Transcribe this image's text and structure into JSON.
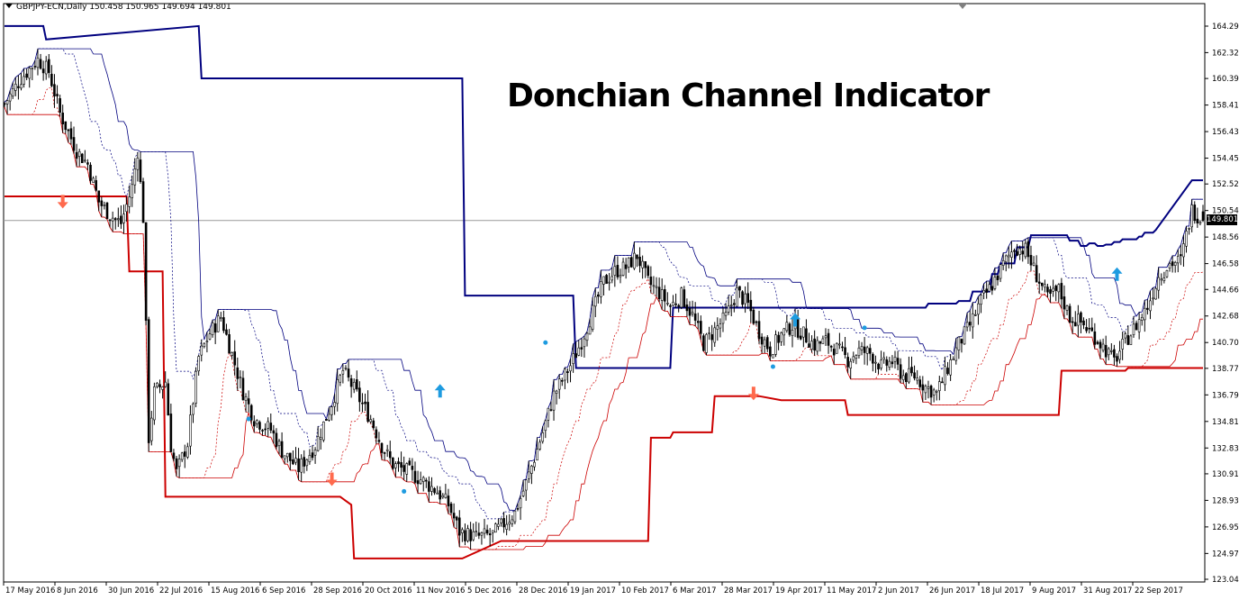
{
  "header": {
    "symbol_line": "GBPJPY-ECN,Daily  150.458 150.965 149.694 149.801"
  },
  "title": "Donchian Channel Indicator",
  "current_price_label": "149.801",
  "colors": {
    "upper_band": "#00007f",
    "lower_band": "#cc0000",
    "mid_band_upper": "#00007f",
    "mid_band_lower": "#cc0000",
    "candles": "#000000",
    "arrow_up": "#1e9be0",
    "arrow_down": "#ff6a4d",
    "signal_dot": "#1e9be0",
    "grid_line": "#999999"
  },
  "icons": {
    "buy_signal": "up-arrow-icon",
    "sell_signal": "down-arrow-icon",
    "signal_dot": "dot-icon"
  },
  "chart_data": {
    "type": "line",
    "ylim": [
      123.045,
      165.5
    ],
    "y_ticks": [
      "164.295",
      "162.320",
      "160.390",
      "158.410",
      "156.430",
      "154.450",
      "152.525",
      "150.545",
      "148.565",
      "146.585",
      "144.660",
      "142.680",
      "140.700",
      "138.775",
      "136.795",
      "134.815",
      "132.835",
      "130.910",
      "128.930",
      "126.950",
      "124.970",
      "123.045"
    ],
    "x_ticks": [
      "17 May 2016",
      "8 Jun 2016",
      "30 Jun 2016",
      "22 Jul 2016",
      "15 Aug 2016",
      "6 Sep 2016",
      "28 Sep 2016",
      "20 Oct 2016",
      "11 Nov 2016",
      "5 Dec 2016",
      "28 Dec 2016",
      "19 Jan 2017",
      "10 Feb 2017",
      "6 Mar 2017",
      "28 Mar 2017",
      "19 Apr 2017",
      "11 May 2017",
      "2 Jun 2017",
      "26 Jun 2017",
      "18 Jul 2017",
      "9 Aug 2017",
      "31 Aug 2017",
      "22 Sep 2017"
    ],
    "last_close": 149.801,
    "series": [
      {
        "values_x": [
          0,
          14,
          15,
          70,
          71,
          85,
          86,
          165,
          166,
          205,
          206,
          213,
          214,
          240,
          241,
          332,
          333,
          343,
          344,
          348,
          349,
          355,
          356,
          358,
          359,
          364,
          365,
          369,
          370,
          377,
          378,
          383,
          384,
          387,
          388,
          390,
          391,
          393,
          394,
          396,
          397,
          399,
          400,
          402,
          403,
          405,
          406,
          408,
          409,
          410,
          411,
          412,
          413,
          414,
          415,
          428,
          429,
          432
        ],
        "values_y": [
          164.3,
          164.3,
          163.3,
          164.3,
          160.4,
          160.4,
          160.4,
          160.4,
          144.2,
          144.2,
          138.8,
          138.8,
          138.8,
          138.8,
          143.3,
          143.3,
          143.6,
          143.6,
          143.8,
          143.8,
          144.5,
          144.5,
          145.8,
          145.8,
          146.6,
          146.6,
          147.8,
          147.8,
          148.7,
          148.7,
          148.7,
          148.7,
          148.3,
          148.3,
          147.9,
          147.9,
          148.1,
          148.1,
          147.9,
          147.9,
          148.0,
          148.0,
          148.2,
          148.2,
          148.4,
          148.4,
          148.4,
          148.4,
          148.6,
          148.6,
          148.9,
          148.9,
          148.9,
          148.9,
          149.1,
          152.8,
          152.8,
          152.8
        ]
      },
      {
        "values_x": [
          0,
          44,
          45,
          57,
          58,
          120,
          121,
          125,
          126,
          142,
          143,
          164,
          165,
          179,
          180,
          232,
          233,
          240,
          241,
          255,
          256,
          271,
          272,
          280,
          281,
          303,
          304,
          346,
          347,
          370,
          371,
          380,
          381,
          397,
          398,
          404,
          405,
          421,
          422,
          432
        ],
        "values_y": [
          151.6,
          151.6,
          146.0,
          146.0,
          129.2,
          129.2,
          129.2,
          128.6,
          124.6,
          124.6,
          124.6,
          124.6,
          124.6,
          125.9,
          125.9,
          125.9,
          133.6,
          133.6,
          134.0,
          134.0,
          136.7,
          136.7,
          136.7,
          136.4,
          136.4,
          136.4,
          135.3,
          135.3,
          135.3,
          135.3,
          135.3,
          135.3,
          138.6,
          138.6,
          138.6,
          138.6,
          138.8,
          138.8,
          138.8,
          138.8
        ]
      }
    ]
  }
}
